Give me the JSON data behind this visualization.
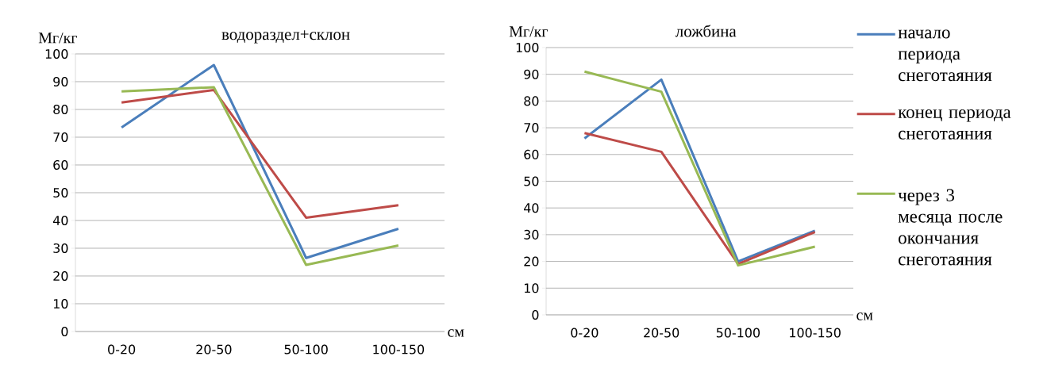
{
  "chart_data": [
    {
      "type": "line",
      "title": "водораздел+склон",
      "ylabel": "Мг/кг",
      "xlabel": "см",
      "categories": [
        "0-20",
        "20-50",
        "50-100",
        "100-150"
      ],
      "ylim": [
        0,
        100
      ],
      "yticks": [
        0,
        10,
        20,
        30,
        40,
        50,
        60,
        70,
        80,
        90,
        100
      ],
      "grid": "y",
      "marker": "none",
      "series": [
        {
          "color": "#4a7ebb",
          "values": [
            73.5,
            96,
            26.5,
            37
          ]
        },
        {
          "color": "#be4b48",
          "values": [
            82.5,
            87,
            41,
            45.5
          ]
        },
        {
          "color": "#98b954",
          "values": [
            86.5,
            88,
            24,
            31
          ]
        }
      ]
    },
    {
      "type": "line",
      "title": "ложбина",
      "ylabel": "Мг/кг",
      "xlabel": "см",
      "categories": [
        "0-20",
        "20-50",
        "50-100",
        "100-150"
      ],
      "ylim": [
        0,
        100
      ],
      "yticks": [
        0,
        10,
        20,
        30,
        40,
        50,
        60,
        70,
        80,
        90,
        100
      ],
      "grid": "y",
      "marker": "none",
      "legend": "right",
      "series": [
        {
          "name": "начало периода снеготаяния",
          "color": "#4a7ebb",
          "values": [
            66,
            88,
            20,
            31.5
          ]
        },
        {
          "name": "конец периода снеготаяния",
          "color": "#be4b48",
          "values": [
            68,
            61,
            19,
            31
          ]
        },
        {
          "name": "через 3 месяца после окончания снеготаяния",
          "color": "#98b954",
          "values": [
            91,
            83.5,
            18.5,
            25.5
          ]
        }
      ]
    }
  ]
}
